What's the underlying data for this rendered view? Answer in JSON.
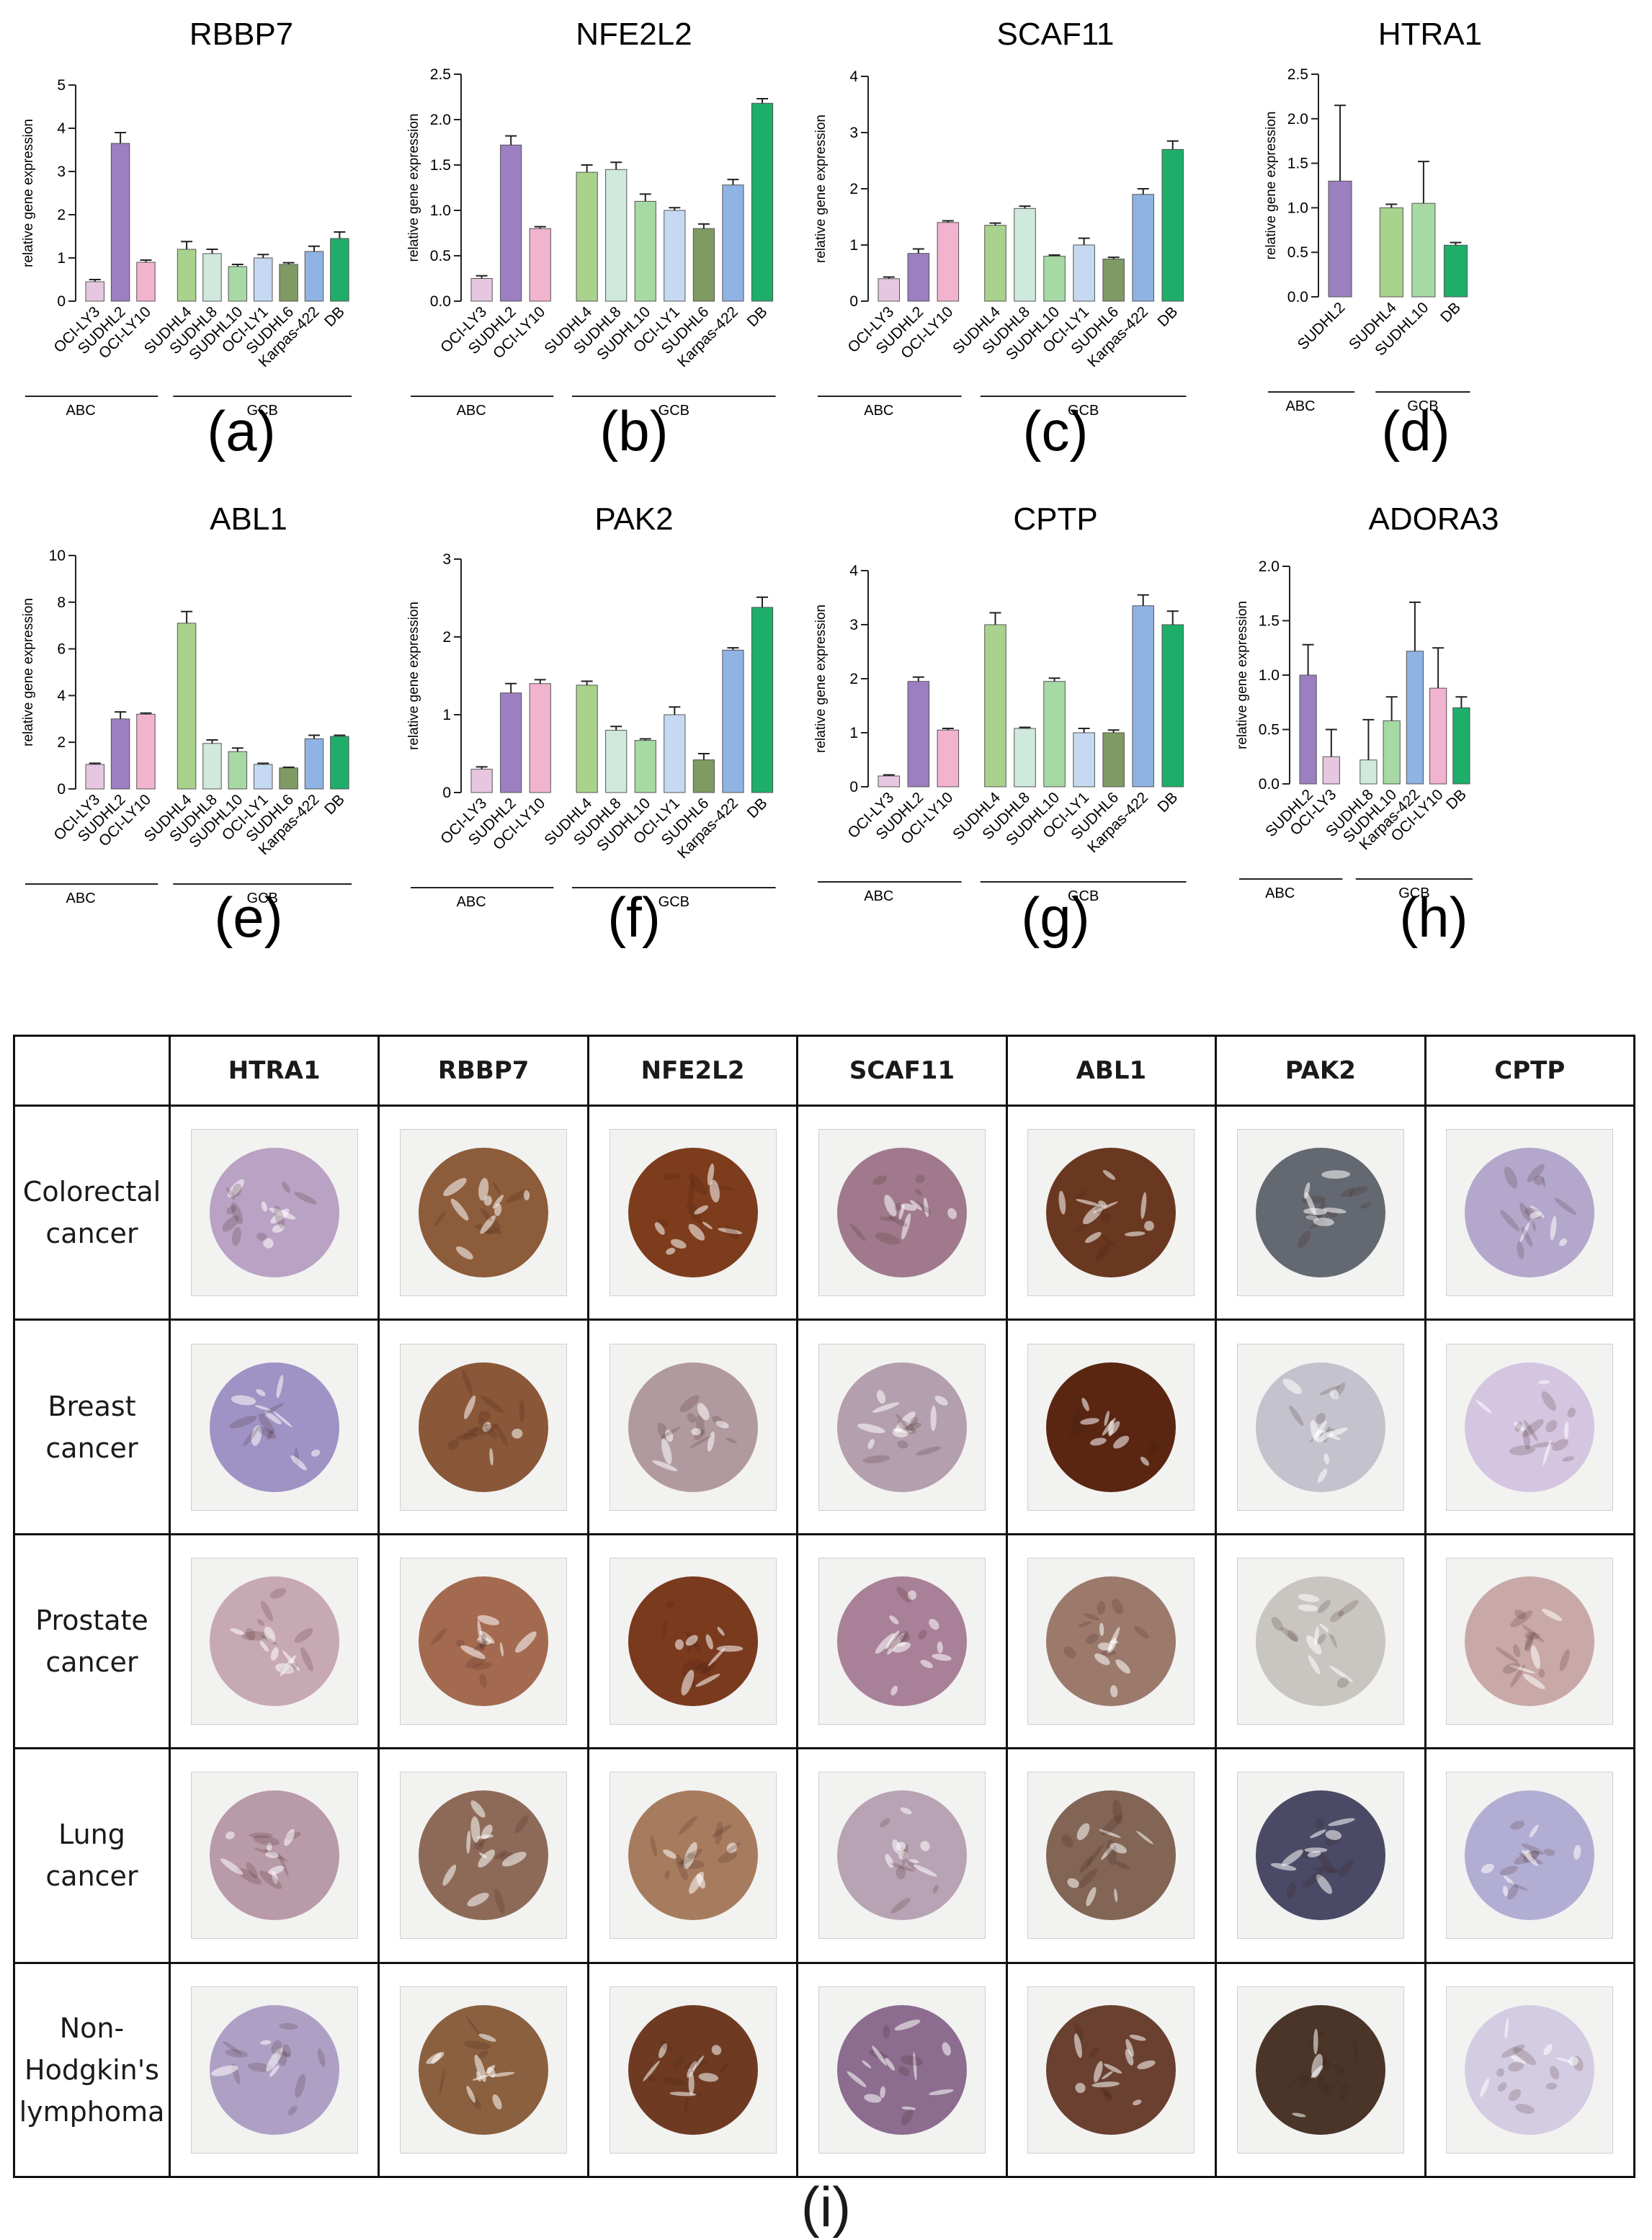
{
  "colors": {
    "OCI-LY3": "#e6c7df",
    "SUDHL2": "#9b7fc0",
    "OCI-LY10": "#f2b3cf",
    "SUDHL4": "#a9d38c",
    "SUDHL8": "#cfe9dd",
    "SUDHL10": "#a7d9a4",
    "OCI-LY1": "#c6d9f2",
    "SUDHL6": "#7f9a62",
    "Karpas-422": "#8fb3e3",
    "DB": "#1fae6a"
  },
  "ylabel": "relative gene expression",
  "chart_data": [
    {
      "type": "bar",
      "title": "RBBP7",
      "panel": "(a)",
      "ylim": [
        0,
        5
      ],
      "yticks": [
        "0",
        "1",
        "2",
        "3",
        "4",
        "5"
      ],
      "groups": [
        {
          "name": "ABC",
          "categories": [
            "OCI-LY3",
            "SUDHL2",
            "OCI-LY10"
          ]
        },
        {
          "name": "GCB",
          "categories": [
            "SUDHL4",
            "SUDHL8",
            "SUDHL10",
            "OCI-LY1",
            "SUDHL6",
            "Karpas-422",
            "DB"
          ]
        }
      ],
      "values": [
        0.45,
        3.65,
        0.9,
        1.2,
        1.1,
        0.8,
        1.0,
        0.85,
        1.15,
        1.45
      ],
      "errors": [
        0.05,
        0.25,
        0.05,
        0.18,
        0.1,
        0.05,
        0.08,
        0.04,
        0.12,
        0.15
      ]
    },
    {
      "type": "bar",
      "title": "NFE2L2",
      "panel": "(b)",
      "ylim": [
        0,
        2.5
      ],
      "yticks": [
        "0.0",
        "0.5",
        "1.0",
        "1.5",
        "2.0",
        "2.5"
      ],
      "groups": [
        {
          "name": "ABC",
          "categories": [
            "OCI-LY3",
            "SUDHL2",
            "OCI-LY10"
          ]
        },
        {
          "name": "GCB",
          "categories": [
            "SUDHL4",
            "SUDHL8",
            "SUDHL10",
            "OCI-LY1",
            "SUDHL6",
            "Karpas-422",
            "DB"
          ]
        }
      ],
      "values": [
        0.25,
        1.72,
        0.8,
        1.42,
        1.45,
        1.1,
        1.0,
        0.8,
        1.28,
        2.18
      ],
      "errors": [
        0.03,
        0.1,
        0.02,
        0.08,
        0.08,
        0.08,
        0.03,
        0.05,
        0.06,
        0.05
      ]
    },
    {
      "type": "bar",
      "title": "SCAF11",
      "panel": "(c)",
      "ylim": [
        0,
        4
      ],
      "yticks": [
        "0",
        "1",
        "2",
        "3",
        "4"
      ],
      "groups": [
        {
          "name": "ABC",
          "categories": [
            "OCI-LY3",
            "SUDHL2",
            "OCI-LY10"
          ]
        },
        {
          "name": "GCB",
          "categories": [
            "SUDHL4",
            "SUDHL8",
            "SUDHL10",
            "OCI-LY1",
            "SUDHL6",
            "Karpas-422",
            "DB"
          ]
        }
      ],
      "values": [
        0.4,
        0.85,
        1.4,
        1.35,
        1.65,
        0.8,
        1.0,
        0.75,
        1.9,
        2.7
      ],
      "errors": [
        0.03,
        0.08,
        0.03,
        0.04,
        0.04,
        0.02,
        0.12,
        0.03,
        0.1,
        0.15
      ]
    },
    {
      "type": "bar",
      "title": "HTRA1",
      "panel": "(d)",
      "ylim": [
        0,
        2.5
      ],
      "yticks": [
        "0.0",
        "0.5",
        "1.0",
        "1.5",
        "2.0",
        "2.5"
      ],
      "groups": [
        {
          "name": "ABC",
          "categories": [
            "SUDHL2"
          ]
        },
        {
          "name": "GCB",
          "categories": [
            "SUDHL4",
            "SUDHL10",
            "DB"
          ]
        }
      ],
      "values": [
        1.3,
        1.0,
        1.05,
        0.58
      ],
      "errors": [
        0.85,
        0.04,
        0.47,
        0.03
      ]
    },
    {
      "type": "bar",
      "title": "ABL1",
      "panel": "(e)",
      "ylim": [
        0,
        10
      ],
      "yticks": [
        "0",
        "2",
        "4",
        "6",
        "8",
        "10"
      ],
      "groups": [
        {
          "name": "ABC",
          "categories": [
            "OCI-LY3",
            "SUDHL2",
            "OCI-LY10"
          ]
        },
        {
          "name": "GCB",
          "categories": [
            "SUDHL4",
            "SUDHL8",
            "SUDHL10",
            "OCI-LY1",
            "SUDHL6",
            "Karpas-422",
            "DB"
          ]
        }
      ],
      "values": [
        1.05,
        3.0,
        3.2,
        7.1,
        1.95,
        1.6,
        1.05,
        0.9,
        2.15,
        2.25
      ],
      "errors": [
        0.05,
        0.3,
        0.05,
        0.5,
        0.15,
        0.15,
        0.05,
        0.03,
        0.15,
        0.05
      ]
    },
    {
      "type": "bar",
      "title": "PAK2",
      "panel": "(f)",
      "ylim": [
        0,
        3
      ],
      "yticks": [
        "0",
        "1",
        "2",
        "3"
      ],
      "groups": [
        {
          "name": "ABC",
          "categories": [
            "OCI-LY3",
            "SUDHL2",
            "OCI-LY10"
          ]
        },
        {
          "name": "GCB",
          "categories": [
            "SUDHL4",
            "SUDHL8",
            "SUDHL10",
            "OCI-LY1",
            "SUDHL6",
            "Karpas-422",
            "DB"
          ]
        }
      ],
      "values": [
        0.3,
        1.28,
        1.4,
        1.38,
        0.8,
        0.67,
        1.0,
        0.42,
        1.83,
        2.38
      ],
      "errors": [
        0.03,
        0.12,
        0.05,
        0.05,
        0.05,
        0.02,
        0.1,
        0.08,
        0.03,
        0.13
      ]
    },
    {
      "type": "bar",
      "title": "CPTP",
      "panel": "(g)",
      "ylim": [
        0,
        4
      ],
      "yticks": [
        "0",
        "1",
        "2",
        "3",
        "4"
      ],
      "groups": [
        {
          "name": "ABC",
          "categories": [
            "OCI-LY3",
            "SUDHL2",
            "OCI-LY10"
          ]
        },
        {
          "name": "GCB",
          "categories": [
            "SUDHL4",
            "SUDHL8",
            "SUDHL10",
            "OCI-LY1",
            "SUDHL6",
            "Karpas-422",
            "DB"
          ]
        }
      ],
      "values": [
        0.2,
        1.95,
        1.05,
        3.0,
        1.08,
        1.95,
        1.0,
        1.0,
        3.35,
        3.0
      ],
      "errors": [
        0.02,
        0.08,
        0.03,
        0.22,
        0.02,
        0.06,
        0.08,
        0.05,
        0.2,
        0.25
      ]
    },
    {
      "type": "bar",
      "title": "ADORA3",
      "panel": "(h)",
      "ylim": [
        0,
        2.0
      ],
      "yticks": [
        "0.0",
        "0.5",
        "1.0",
        "1.5",
        "2.0"
      ],
      "groups": [
        {
          "name": "ABC",
          "categories": [
            "SUDHL2",
            "OCI-LY3"
          ]
        },
        {
          "name": "GCB",
          "categories": [
            "SUDHL8",
            "SUDHL10",
            "Karpas-422",
            "OCI-LY10",
            "DB"
          ]
        }
      ],
      "values": [
        1.0,
        0.25,
        0.22,
        0.58,
        1.22,
        0.88,
        0.7
      ],
      "errors": [
        0.28,
        0.25,
        0.37,
        0.22,
        0.45,
        0.37,
        0.1
      ]
    }
  ],
  "ihc": {
    "panel": "(i)",
    "corner": "",
    "genes": [
      "HTRA1",
      "RBBP7",
      "NFE2L2",
      "SCAF11",
      "ABL1",
      "PAK2",
      "CPTP"
    ],
    "rows": [
      {
        "label": "Colorectal\ncancer",
        "stains": [
          "#b9a2c3",
          "#8d5c3a",
          "#7d3c1c",
          "#a07a8c",
          "#6a3820",
          "#646870",
          "#b3a8cc"
        ]
      },
      {
        "label": "Breast\ncancer",
        "stains": [
          "#9f92c4",
          "#8a5738",
          "#b19a9f",
          "#b49fae",
          "#5a2612",
          "#c4c2cc",
          "#d4c6e0"
        ]
      },
      {
        "label": "Prostate\ncancer",
        "stains": [
          "#c7a9b4",
          "#a46a50",
          "#7a3a1d",
          "#a88097",
          "#9b7a6c",
          "#c9c6c2",
          "#c9a9a8"
        ]
      },
      {
        "label": "Lung\ncancer",
        "stains": [
          "#b99aa8",
          "#8d6a58",
          "#a77c5e",
          "#b7a3b3",
          "#826555",
          "#4a4a66",
          "#b2aed3"
        ]
      },
      {
        "label": "Non-\nHodgkin's\nlymphoma",
        "stains": [
          "#aea0c5",
          "#8a603f",
          "#6e3b22",
          "#8c6d8f",
          "#6a4030",
          "#4a3528",
          "#d3cce2"
        ]
      }
    ]
  }
}
